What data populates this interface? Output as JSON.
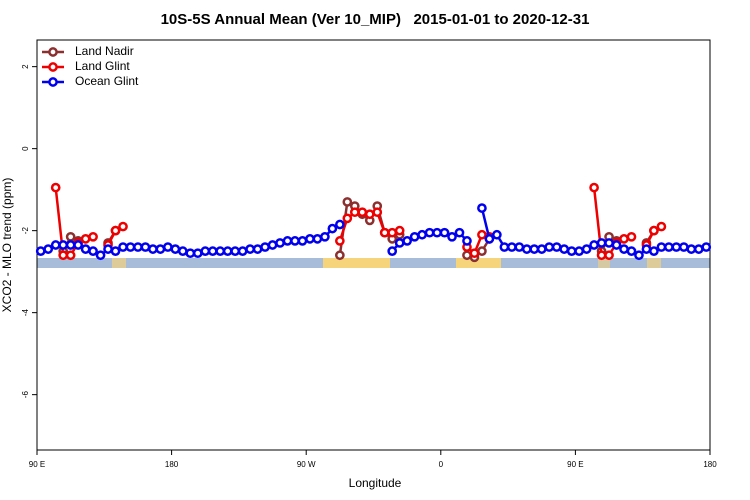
{
  "chart_data": {
    "type": "line",
    "title": "10S-5S Annual Mean (Ver 10_MIP)   2015-01-01 to 2020-12-31",
    "xlabel": "Longitude",
    "ylabel": "XCO2 - MLO trend (ppm)",
    "xlim": [
      90,
      540
    ],
    "ylim": [
      -7.35,
      2.65
    ],
    "xticks": [
      {
        "value": 90,
        "label": "90 E"
      },
      {
        "value": 180,
        "label": "180"
      },
      {
        "value": 270,
        "label": "90 W"
      },
      {
        "value": 360,
        "label": "0"
      },
      {
        "value": 450,
        "label": "90 E"
      },
      {
        "value": 540,
        "label": "180"
      }
    ],
    "yticks": [
      -6,
      -4,
      -2,
      0,
      2
    ],
    "legend": "upper left",
    "x": [
      92.5,
      97.5,
      102.5,
      107.5,
      112.5,
      117.5,
      122.5,
      127.5,
      132.5,
      137.5,
      142.5,
      147.5,
      152.5,
      157.5,
      162.5,
      167.5,
      172.5,
      177.5,
      182.5,
      187.5,
      192.5,
      197.5,
      202.5,
      207.5,
      212.5,
      217.5,
      222.5,
      227.5,
      232.5,
      237.5,
      242.5,
      247.5,
      252.5,
      257.5,
      262.5,
      267.5,
      272.5,
      277.5,
      282.5,
      287.5,
      292.5,
      297.5,
      302.5,
      307.5,
      312.5,
      317.5,
      322.5,
      327.5,
      332.5,
      337.5,
      342.5,
      347.5,
      352.5,
      357.5,
      362.5,
      367.5,
      372.5,
      377.5,
      382.5,
      387.5,
      392.5,
      397.5,
      402.5,
      407.5,
      412.5,
      417.5,
      422.5,
      427.5,
      432.5,
      437.5,
      442.5,
      447.5,
      452.5,
      457.5,
      462.5,
      467.5,
      472.5,
      477.5,
      482.5,
      487.5,
      492.5,
      497.5,
      502.5,
      507.5,
      512.5,
      517.5,
      522.5,
      527.5,
      532.5,
      537.5
    ],
    "series": [
      {
        "name": "Land Nadir",
        "color": "#8b2f2f",
        "values": [
          null,
          null,
          null,
          -2.5,
          -2.15,
          -2.25,
          null,
          null,
          null,
          -2.3,
          -2.0,
          null,
          null,
          null,
          null,
          null,
          null,
          null,
          null,
          null,
          null,
          null,
          null,
          null,
          null,
          null,
          null,
          null,
          null,
          null,
          null,
          null,
          null,
          null,
          null,
          null,
          null,
          null,
          null,
          null,
          -2.6,
          -1.3,
          -1.4,
          -1.6,
          -1.75,
          -1.4,
          -2.05,
          -2.2,
          -2.1,
          null,
          null,
          null,
          null,
          null,
          null,
          null,
          null,
          -2.6,
          -2.65,
          -2.5,
          -2.2,
          null,
          null,
          null,
          null,
          null,
          null,
          null,
          null,
          null,
          null,
          null,
          null,
          null,
          null,
          -2.5,
          -2.15,
          -2.25,
          null,
          null,
          null,
          -2.3,
          -2.0,
          null,
          null,
          null,
          null,
          null,
          null,
          null
        ]
      },
      {
        "name": "Land Glint",
        "color": "#ee0000",
        "values": [
          null,
          null,
          -0.95,
          -2.6,
          -2.6,
          -2.3,
          -2.2,
          -2.15,
          null,
          -2.35,
          -2.0,
          -1.9,
          null,
          null,
          null,
          null,
          null,
          null,
          null,
          null,
          null,
          null,
          null,
          null,
          null,
          null,
          null,
          null,
          null,
          null,
          null,
          null,
          null,
          null,
          null,
          null,
          null,
          null,
          null,
          null,
          -2.25,
          -1.7,
          -1.55,
          -1.55,
          -1.6,
          -1.55,
          -2.05,
          -2.05,
          -2.0,
          null,
          null,
          null,
          null,
          null,
          null,
          null,
          null,
          -2.4,
          -2.55,
          -2.1,
          -2.15,
          null,
          null,
          null,
          null,
          null,
          null,
          null,
          null,
          null,
          null,
          null,
          null,
          null,
          -0.95,
          -2.6,
          -2.6,
          -2.3,
          -2.2,
          -2.15,
          null,
          -2.35,
          -2.0,
          -1.9,
          null,
          null,
          null,
          null,
          null,
          null
        ]
      },
      {
        "name": "Ocean Glint",
        "color": "#0000ee",
        "values": [
          -2.5,
          -2.45,
          -2.35,
          -2.35,
          -2.35,
          -2.35,
          -2.45,
          -2.5,
          -2.6,
          -2.45,
          -2.5,
          -2.4,
          -2.4,
          -2.4,
          -2.4,
          -2.45,
          -2.45,
          -2.4,
          -2.45,
          -2.5,
          -2.55,
          -2.55,
          -2.5,
          -2.5,
          -2.5,
          -2.5,
          -2.5,
          -2.5,
          -2.45,
          -2.45,
          -2.4,
          -2.35,
          -2.3,
          -2.25,
          -2.25,
          -2.25,
          -2.2,
          -2.2,
          -2.15,
          -1.95,
          -1.85,
          null,
          null,
          null,
          null,
          null,
          null,
          -2.5,
          -2.3,
          -2.25,
          -2.15,
          -2.1,
          -2.05,
          -2.05,
          -2.05,
          -2.15,
          -2.05,
          -2.25,
          null,
          -1.45,
          -2.2,
          -2.1,
          -2.4,
          -2.4,
          -2.4,
          -2.45,
          -2.45,
          -2.45,
          -2.4,
          -2.4,
          -2.45,
          -2.5,
          -2.5,
          -2.45,
          -2.35,
          -2.3,
          -2.3,
          -2.35,
          -2.45,
          -2.5,
          -2.6,
          -2.45,
          -2.5,
          -2.4,
          -2.4,
          -2.4,
          -2.4,
          -2.45,
          -2.45,
          -2.4
        ]
      }
    ]
  }
}
